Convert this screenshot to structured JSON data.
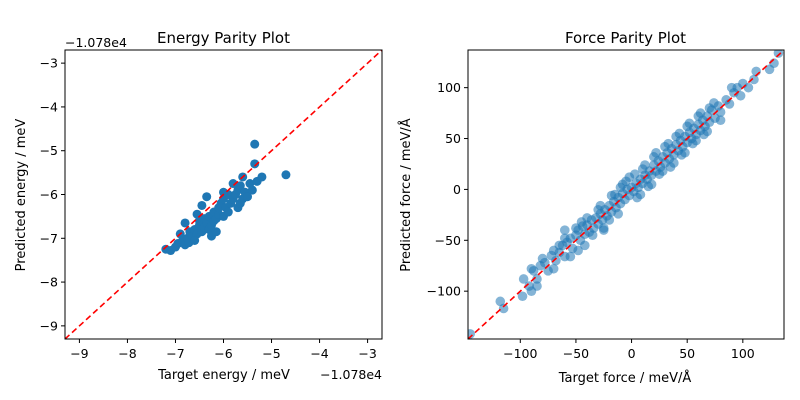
{
  "colors": {
    "point": "#1f77b4",
    "parity_line": "#ff0000",
    "axes": "#000000",
    "background": "#ffffff"
  },
  "chart_data": [
    {
      "type": "scatter",
      "title": "Energy Parity Plot",
      "xlabel": "Target energy / meV",
      "ylabel": "Predicted energy / meV",
      "axis_offset_label": "−1.078e4",
      "tick_values": [
        -9,
        -8,
        -7,
        -6,
        -5,
        -4,
        -3
      ],
      "tick_labels": [
        "−9",
        "−8",
        "−7",
        "−6",
        "−5",
        "−4",
        "−3"
      ],
      "xlim": [
        -9.3,
        -2.7
      ],
      "ylim": [
        -9.3,
        -2.7
      ],
      "parity_line": true,
      "marker_alpha": 1.0,
      "points": [
        [
          -7.2,
          -7.25
        ],
        [
          -7.1,
          -7.28
        ],
        [
          -7.0,
          -7.2
        ],
        [
          -6.95,
          -7.12
        ],
        [
          -6.85,
          -7.05
        ],
        [
          -6.8,
          -7.15
        ],
        [
          -6.9,
          -6.9
        ],
        [
          -6.75,
          -7.0
        ],
        [
          -6.72,
          -7.1
        ],
        [
          -6.7,
          -6.85
        ],
        [
          -6.65,
          -6.95
        ],
        [
          -6.6,
          -6.8
        ],
        [
          -6.55,
          -6.9
        ],
        [
          -6.5,
          -6.7
        ],
        [
          -6.5,
          -6.6
        ],
        [
          -6.45,
          -6.85
        ],
        [
          -6.4,
          -6.75
        ],
        [
          -6.4,
          -6.55
        ],
        [
          -6.35,
          -6.65
        ],
        [
          -6.3,
          -6.8
        ],
        [
          -6.3,
          -6.5
        ],
        [
          -6.25,
          -6.7
        ],
        [
          -6.2,
          -6.6
        ],
        [
          -6.2,
          -6.4
        ],
        [
          -6.15,
          -6.55
        ],
        [
          -6.1,
          -6.45
        ],
        [
          -6.1,
          -6.3
        ],
        [
          -6.05,
          -6.2
        ],
        [
          -6.0,
          -6.5
        ],
        [
          -6.0,
          -6.1
        ],
        [
          -5.95,
          -6.3
        ],
        [
          -5.9,
          -6.0
        ],
        [
          -5.85,
          -6.2
        ],
        [
          -5.8,
          -6.1
        ],
        [
          -5.75,
          -6.0
        ],
        [
          -5.7,
          -5.9
        ],
        [
          -5.7,
          -6.3
        ],
        [
          -5.65,
          -5.8
        ],
        [
          -5.6,
          -6.1
        ],
        [
          -5.6,
          -5.6
        ],
        [
          -5.55,
          -5.95
        ],
        [
          -5.5,
          -6.05
        ],
        [
          -5.45,
          -5.75
        ],
        [
          -5.4,
          -5.9
        ],
        [
          -5.35,
          -5.3
        ],
        [
          -5.3,
          -5.7
        ],
        [
          -5.35,
          -4.85
        ],
        [
          -5.2,
          -5.6
        ],
        [
          -4.7,
          -5.55
        ],
        [
          -6.8,
          -6.65
        ],
        [
          -6.6,
          -7.05
        ],
        [
          -6.45,
          -6.25
        ],
        [
          -6.25,
          -6.95
        ],
        [
          -6.0,
          -5.95
        ],
        [
          -5.9,
          -6.4
        ],
        [
          -5.8,
          -5.75
        ],
        [
          -6.35,
          -6.05
        ],
        [
          -6.55,
          -6.45
        ],
        [
          -6.15,
          -6.85
        ],
        [
          -5.65,
          -6.2
        ]
      ]
    },
    {
      "type": "scatter",
      "title": "Force Parity Plot",
      "xlabel": "Target force / meV/Å",
      "ylabel": "Predicted force / meV/Å",
      "x_tick_values": [
        -100,
        -50,
        0,
        50,
        100
      ],
      "x_tick_labels": [
        "−100",
        "−50",
        "0",
        "50",
        "100"
      ],
      "y_tick_values": [
        -100,
        -50,
        0,
        50,
        100
      ],
      "y_tick_labels": [
        "−100",
        "−50",
        "0",
        "50",
        "100"
      ],
      "xlim": [
        -147,
        137
      ],
      "ylim": [
        -147,
        137
      ],
      "parity_line": true,
      "marker_alpha": 0.55,
      "points": [
        [
          -145,
          -142
        ],
        [
          -118,
          -110
        ],
        [
          -115,
          -117
        ],
        [
          -98,
          -105
        ],
        [
          -97,
          -88
        ],
        [
          -92,
          -95
        ],
        [
          -90,
          -78
        ],
        [
          -88,
          -80
        ],
        [
          -85,
          -88
        ],
        [
          -82,
          -75
        ],
        [
          -78,
          -72
        ],
        [
          -75,
          -80
        ],
        [
          -72,
          -65
        ],
        [
          -70,
          -60
        ],
        [
          -68,
          -70
        ],
        [
          -65,
          -62
        ],
        [
          -62,
          -55
        ],
        [
          -60,
          -66
        ],
        [
          -58,
          -52
        ],
        [
          -55,
          -48
        ],
        [
          -53,
          -58
        ],
        [
          -50,
          -45
        ],
        [
          -48,
          -40
        ],
        [
          -46,
          -50
        ],
        [
          -44,
          -36
        ],
        [
          -42,
          -44
        ],
        [
          -40,
          -35
        ],
        [
          -38,
          -42
        ],
        [
          -36,
          -30
        ],
        [
          -34,
          -38
        ],
        [
          -32,
          -28
        ],
        [
          -30,
          -34
        ],
        [
          -28,
          -24
        ],
        [
          -26,
          -30
        ],
        [
          -24,
          -20
        ],
        [
          -22,
          -26
        ],
        [
          -20,
          -16
        ],
        [
          -18,
          -22
        ],
        [
          -16,
          -12
        ],
        [
          -14,
          -18
        ],
        [
          -12,
          -8
        ],
        [
          -10,
          -14
        ],
        [
          -8,
          -4
        ],
        [
          -6,
          -10
        ],
        [
          -4,
          0
        ],
        [
          -2,
          -6
        ],
        [
          0,
          2
        ],
        [
          2,
          -2
        ],
        [
          4,
          6
        ],
        [
          6,
          2
        ],
        [
          8,
          10
        ],
        [
          10,
          6
        ],
        [
          12,
          14
        ],
        [
          14,
          10
        ],
        [
          16,
          18
        ],
        [
          18,
          14
        ],
        [
          20,
          24
        ],
        [
          22,
          18
        ],
        [
          24,
          28
        ],
        [
          26,
          22
        ],
        [
          28,
          32
        ],
        [
          30,
          26
        ],
        [
          32,
          36
        ],
        [
          34,
          30
        ],
        [
          36,
          40
        ],
        [
          38,
          34
        ],
        [
          40,
          44
        ],
        [
          42,
          38
        ],
        [
          44,
          48
        ],
        [
          46,
          42
        ],
        [
          48,
          52
        ],
        [
          50,
          46
        ],
        [
          52,
          56
        ],
        [
          54,
          50
        ],
        [
          56,
          60
        ],
        [
          58,
          54
        ],
        [
          60,
          64
        ],
        [
          62,
          58
        ],
        [
          64,
          68
        ],
        [
          66,
          62
        ],
        [
          68,
          72
        ],
        [
          70,
          66
        ],
        [
          72,
          78
        ],
        [
          75,
          70
        ],
        [
          78,
          82
        ],
        [
          80,
          76
        ],
        [
          85,
          88
        ],
        [
          88,
          84
        ],
        [
          92,
          95
        ],
        [
          95,
          100
        ],
        [
          98,
          92
        ],
        [
          100,
          104
        ],
        [
          105,
          100
        ],
        [
          110,
          108
        ],
        [
          112,
          116
        ],
        [
          -55,
          -66
        ],
        [
          -40,
          -28
        ],
        [
          -25,
          -38
        ],
        [
          -10,
          2
        ],
        [
          5,
          -8
        ],
        [
          20,
          32
        ],
        [
          35,
          22
        ],
        [
          50,
          62
        ],
        [
          65,
          54
        ],
        [
          -80,
          -68
        ],
        [
          -35,
          -45
        ],
        [
          -15,
          -5
        ],
        [
          15,
          3
        ],
        [
          30,
          42
        ],
        [
          45,
          34
        ],
        [
          60,
          72
        ],
        [
          -60,
          -48
        ],
        [
          -20,
          -30
        ],
        [
          25,
          15
        ],
        [
          70,
          80
        ],
        [
          -5,
          8
        ],
        [
          10,
          20
        ],
        [
          40,
          52
        ],
        [
          55,
          45
        ],
        [
          -45,
          -32
        ],
        [
          -30,
          -20
        ],
        [
          -70,
          -78
        ],
        [
          -90,
          -100
        ],
        [
          80,
          68
        ],
        [
          90,
          100
        ],
        [
          -2,
          12
        ],
        [
          3,
          15
        ],
        [
          18,
          5
        ],
        [
          33,
          45
        ],
        [
          48,
          36
        ],
        [
          62,
          75
        ],
        [
          -12,
          -24
        ],
        [
          -28,
          -16
        ],
        [
          -50,
          -38
        ],
        [
          -65,
          -55
        ],
        [
          124,
          118
        ],
        [
          128,
          124
        ],
        [
          132,
          134
        ],
        [
          -60,
          -40
        ],
        [
          -42,
          -55
        ],
        [
          -25,
          -40
        ],
        [
          -8,
          5
        ],
        [
          8,
          -5
        ],
        [
          22,
          36
        ],
        [
          38,
          26
        ],
        [
          52,
          65
        ],
        [
          68,
          57
        ],
        [
          -85,
          -95
        ],
        [
          -48,
          -60
        ],
        [
          12,
          24
        ],
        [
          28,
          18
        ],
        [
          43,
          55
        ],
        [
          58,
          48
        ],
        [
          74,
          85
        ],
        [
          -18,
          -6
        ]
      ]
    }
  ]
}
